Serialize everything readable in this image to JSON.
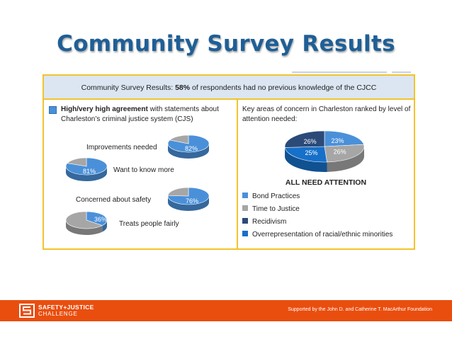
{
  "slide": {
    "title": "Community Survey Results"
  },
  "panel": {
    "header_prefix": "Community Survey Results: ",
    "header_pct": "58%",
    "header_suffix": " of respondents had no previous knowledge of the CJCC"
  },
  "left": {
    "heading_bold": "High/very high agreement",
    "heading_rest": " with statements about Charleston’s criminal justice system (CJS)"
  },
  "right": {
    "heading": "Key areas of concern in Charleston ranked by level of attention needed:",
    "caption": "ALL NEED ATTENTION"
  },
  "colors": {
    "agree": "#4a90d9",
    "other": "#a6a6a6",
    "bond": "#4a90d9",
    "time": "#a6a6a6",
    "recid": "#2b4a78",
    "overrep": "#1670c9",
    "accent": "#f2c32c",
    "brand": "#e94e0f"
  },
  "chart_data": [
    {
      "type": "pie",
      "title": "High/very high agreement with statements about Charleston’s criminal justice system (CJS)",
      "series": [
        {
          "label": "Improvements needed",
          "value": 82,
          "display": "82%"
        },
        {
          "label": "Want to know more",
          "value": 81,
          "display": "81%"
        },
        {
          "label": "Concerned about safety",
          "value": 76,
          "display": "76%"
        },
        {
          "label": "Treats people fairly",
          "value": 36,
          "display": "36%"
        }
      ]
    },
    {
      "type": "pie",
      "title": "Key areas of concern in Charleston ranked by level of attention needed:",
      "caption": "ALL NEED ATTENTION",
      "slices": [
        {
          "label": "Bond Practices",
          "value": 23,
          "display": "23%"
        },
        {
          "label": "Time to Justice",
          "value": 26,
          "display": "26%"
        },
        {
          "label": "Overrepresentation of racial/ethnic minorities",
          "value": 25,
          "display": "25%"
        },
        {
          "label": "Recidivism",
          "value": 26,
          "display": "26%"
        }
      ],
      "legend": [
        "Bond Practices",
        "Time to Justice",
        "Recidivism",
        "Overrepresentation of racial/ethnic minorities"
      ]
    }
  ],
  "footer": {
    "logo_line1": "SAFETY+JUSTICE",
    "logo_line2": "CHALLENGE",
    "note": "Supported by the John D. and Catherine T. MacArthur Foundation"
  }
}
